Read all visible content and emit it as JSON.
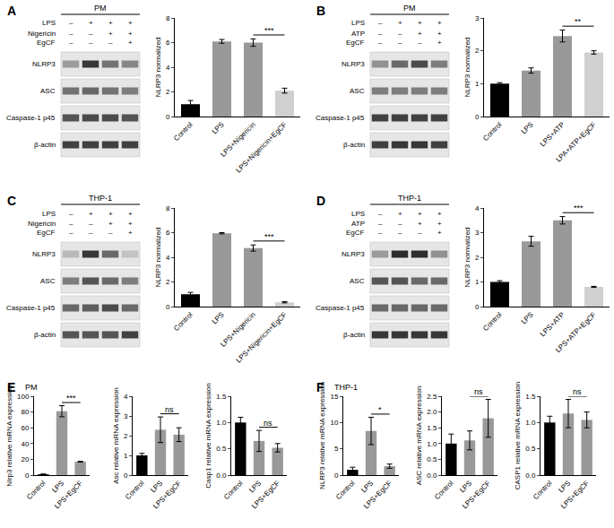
{
  "panels": [
    {
      "label": "A"
    },
    {
      "label": "B"
    },
    {
      "label": "C"
    },
    {
      "label": "D"
    },
    {
      "label": "E",
      "title": "PM"
    },
    {
      "label": "F",
      "title": "THP-1"
    }
  ],
  "blots": [
    {
      "panel": "A",
      "title": "PM",
      "conditions": [
        {
          "name": "LPS",
          "signs": [
            "–",
            "+",
            "+",
            "+"
          ]
        },
        {
          "name": "Nigericin",
          "signs": [
            "–",
            "–",
            "+",
            "+"
          ]
        },
        {
          "name": "EgCF",
          "signs": [
            "–",
            "–",
            "–",
            "+"
          ]
        }
      ],
      "bands": [
        {
          "name": "NLRP3",
          "intensity": [
            0.35,
            0.85,
            0.55,
            0.45
          ]
        },
        {
          "name": "ASC",
          "intensity": [
            0.55,
            0.6,
            0.55,
            0.5
          ]
        },
        {
          "name": "Caspase-1 p45",
          "intensity": [
            0.7,
            0.75,
            0.75,
            0.7
          ]
        },
        {
          "name": "β-actin",
          "intensity": [
            0.8,
            0.8,
            0.8,
            0.8
          ]
        }
      ]
    },
    {
      "panel": "B",
      "title": "PM",
      "conditions": [
        {
          "name": "LPS",
          "signs": [
            "–",
            "+",
            "+",
            "+"
          ]
        },
        {
          "name": "ATP",
          "signs": [
            "–",
            "–",
            "+",
            "+"
          ]
        },
        {
          "name": "EgCF",
          "signs": [
            "–",
            "–",
            "–",
            "+"
          ]
        }
      ],
      "bands": [
        {
          "name": "NLRP3",
          "intensity": [
            0.4,
            0.6,
            0.75,
            0.5
          ]
        },
        {
          "name": "ASC",
          "intensity": [
            0.5,
            0.5,
            0.5,
            0.5
          ]
        },
        {
          "name": "Caspase-1 p45",
          "intensity": [
            0.8,
            0.8,
            0.8,
            0.8
          ]
        },
        {
          "name": "β-actin",
          "intensity": [
            0.8,
            0.85,
            0.85,
            0.8
          ]
        }
      ]
    },
    {
      "panel": "C",
      "title": "THP-1",
      "conditions": [
        {
          "name": "LPS",
          "signs": [
            "–",
            "+",
            "+",
            "+"
          ]
        },
        {
          "name": "Nigericin",
          "signs": [
            "–",
            "–",
            "+",
            "+"
          ]
        },
        {
          "name": "EgCF",
          "signs": [
            "–",
            "–",
            "–",
            "+"
          ]
        }
      ],
      "bands": [
        {
          "name": "NLRP3",
          "intensity": [
            0.2,
            0.85,
            0.6,
            0.15
          ]
        },
        {
          "name": "ASC",
          "intensity": [
            0.5,
            0.7,
            0.6,
            0.5
          ]
        },
        {
          "name": "Caspase-1 p45",
          "intensity": [
            0.6,
            0.65,
            0.75,
            0.6
          ]
        },
        {
          "name": "β-actin",
          "intensity": [
            0.7,
            0.7,
            0.7,
            0.8
          ]
        }
      ]
    },
    {
      "panel": "D",
      "title": "THP-1",
      "conditions": [
        {
          "name": "LPS",
          "signs": [
            "–",
            "+",
            "+",
            "+"
          ]
        },
        {
          "name": "ATP",
          "signs": [
            "–",
            "–",
            "+",
            "+"
          ]
        },
        {
          "name": "EgCF",
          "signs": [
            "–",
            "–",
            "–",
            "+"
          ]
        }
      ],
      "bands": [
        {
          "name": "NLRP3",
          "intensity": [
            0.35,
            0.9,
            0.9,
            0.4
          ]
        },
        {
          "name": "ASC",
          "intensity": [
            0.7,
            0.7,
            0.6,
            0.6
          ]
        },
        {
          "name": "Caspase-1 p45",
          "intensity": [
            0.6,
            0.6,
            0.6,
            0.6
          ]
        },
        {
          "name": "β-actin",
          "intensity": [
            0.85,
            0.85,
            0.85,
            0.85
          ]
        }
      ]
    }
  ],
  "chart_data": [
    {
      "panel": "A",
      "type": "bar",
      "y_title": "NLRP3 normalized",
      "categories": [
        "Control",
        "LPS",
        "LPS+Nigericin",
        "LPS+Nigericin+EgCF"
      ],
      "values": [
        1.0,
        6.1,
        6.0,
        2.1
      ],
      "errors": [
        0.3,
        0.15,
        0.3,
        0.2
      ],
      "colors": [
        "#000000",
        "#999999",
        "#999999",
        "#d0d0d0"
      ],
      "ylim": [
        0,
        8
      ],
      "yticks": [
        0,
        2,
        4,
        6,
        8
      ],
      "comparison": {
        "between": [
          "LPS+Nigericin",
          "LPS+Nigericin+EgCF"
        ],
        "label": "***"
      }
    },
    {
      "panel": "B",
      "type": "bar",
      "y_title": "NLRP3 normalized",
      "categories": [
        "Control",
        "LPS",
        "LPS+ATP",
        "LPA+ATP+EgCF"
      ],
      "values": [
        1.0,
        1.4,
        2.45,
        1.95
      ],
      "errors": [
        0.03,
        0.08,
        0.18,
        0.05
      ],
      "colors": [
        "#000000",
        "#999999",
        "#999999",
        "#d0d0d0"
      ],
      "ylim": [
        0,
        3
      ],
      "yticks": [
        0,
        1,
        2,
        3
      ],
      "comparison": {
        "between": [
          "LPS+ATP",
          "LPA+ATP+EgCF"
        ],
        "label": "**"
      }
    },
    {
      "panel": "C",
      "type": "bar",
      "y_title": "NLRP3 normalized",
      "categories": [
        "Control",
        "LPS",
        "LPS+Nigericin",
        "LPS+Nigericin+EgCF"
      ],
      "values": [
        1.0,
        5.95,
        4.75,
        0.35
      ],
      "errors": [
        0.15,
        0.05,
        0.25,
        0.05
      ],
      "colors": [
        "#000000",
        "#999999",
        "#999999",
        "#d0d0d0"
      ],
      "ylim": [
        0,
        8
      ],
      "yticks": [
        0,
        2,
        4,
        6,
        8
      ],
      "comparison": {
        "between": [
          "LPS+Nigericin",
          "LPS+Nigericin+EgCF"
        ],
        "label": "***"
      }
    },
    {
      "panel": "D",
      "type": "bar",
      "y_title": "NLRP3 normalized",
      "categories": [
        "Control",
        "LPS",
        "LPS+ATP",
        "LPS+ATP+EgCF"
      ],
      "values": [
        1.0,
        2.65,
        3.5,
        0.8
      ],
      "errors": [
        0.05,
        0.2,
        0.15,
        0.02
      ],
      "colors": [
        "#000000",
        "#999999",
        "#999999",
        "#d0d0d0"
      ],
      "ylim": [
        0,
        4
      ],
      "yticks": [
        0,
        1,
        2,
        3,
        4
      ],
      "comparison": {
        "between": [
          "LPS+ATP",
          "LPS+ATP+EgCF"
        ],
        "label": "***"
      }
    },
    {
      "panel": "E",
      "type": "bar",
      "y_title": "Nlrp3 relative mRNA expression",
      "categories": [
        "Control",
        "LPS",
        "LPS+EgCF"
      ],
      "values": [
        1.0,
        81,
        17
      ],
      "errors": [
        0.5,
        7,
        0.5
      ],
      "colors": [
        "#000000",
        "#999999",
        "#999999"
      ],
      "ylim": [
        0,
        100
      ],
      "yticks": [
        0,
        20,
        40,
        60,
        80,
        100
      ],
      "comparison": {
        "between": [
          "LPS",
          "LPS+EgCF"
        ],
        "label": "***"
      }
    },
    {
      "panel": "E",
      "type": "bar",
      "y_title": "Asc relative mRNA expression",
      "categories": [
        "Control",
        "LPS",
        "LPS+EgCF"
      ],
      "values": [
        1.0,
        2.3,
        2.05
      ],
      "errors": [
        0.1,
        0.65,
        0.35
      ],
      "colors": [
        "#000000",
        "#999999",
        "#999999"
      ],
      "ylim": [
        0,
        4
      ],
      "yticks": [
        0,
        1,
        2,
        3,
        4
      ],
      "comparison": {
        "between": [
          "LPS",
          "LPS+EgCF"
        ],
        "label": "ns"
      }
    },
    {
      "panel": "E",
      "type": "bar",
      "y_title": "Casp1 relative mRNA expression",
      "categories": [
        "Control",
        "LPS",
        "LPS+EgCF"
      ],
      "values": [
        1.0,
        0.65,
        0.52
      ],
      "errors": [
        0.1,
        0.2,
        0.08
      ],
      "colors": [
        "#000000",
        "#999999",
        "#999999"
      ],
      "ylim": [
        0,
        1.5
      ],
      "yticks": [
        {
          "value": 0,
          "label": "0.0"
        },
        {
          "value": 0.5,
          "label": "0.5"
        },
        {
          "value": 1,
          "label": "1.0"
        },
        {
          "value": 1.5,
          "label": "1.5"
        }
      ],
      "comparison": {
        "between": [
          "LPS",
          "LPS+EgCF"
        ],
        "label": "ns"
      }
    },
    {
      "panel": "F",
      "type": "bar",
      "y_title": "NLRP3 relative mRNA expression",
      "categories": [
        "Control",
        "LPS",
        "LPS+EgCF"
      ],
      "values": [
        1.0,
        8.4,
        1.7
      ],
      "errors": [
        0.5,
        2.6,
        0.4
      ],
      "colors": [
        "#000000",
        "#999999",
        "#999999"
      ],
      "ylim": [
        0,
        15
      ],
      "yticks": [
        0,
        5,
        10,
        15
      ],
      "comparison": {
        "between": [
          "LPS",
          "LPS+EgCF"
        ],
        "label": "*"
      }
    },
    {
      "panel": "F",
      "type": "bar",
      "y_title": "ASC relative mRNA expression",
      "categories": [
        "Control",
        "LPS",
        "LPS+EgCF"
      ],
      "values": [
        1.0,
        1.1,
        1.8
      ],
      "errors": [
        0.3,
        0.3,
        0.6
      ],
      "colors": [
        "#000000",
        "#999999",
        "#999999"
      ],
      "ylim": [
        0,
        2.5
      ],
      "yticks": [
        {
          "value": 0,
          "label": "0.0"
        },
        {
          "value": 0.5,
          "label": "0.5"
        },
        {
          "value": 1,
          "label": "1.0"
        },
        {
          "value": 1.5,
          "label": "1.5"
        },
        {
          "value": 2,
          "label": "2.0"
        },
        {
          "value": 2.5,
          "label": "2.5"
        }
      ],
      "comparison": {
        "between": [
          "LPS",
          "LPS+EgCF"
        ],
        "label": "ns"
      }
    },
    {
      "panel": "F",
      "type": "bar",
      "y_title": "CASP1 relative mRNA expression",
      "categories": [
        "Control",
        "LPS",
        "LPS+EgCF"
      ],
      "values": [
        1.0,
        1.17,
        1.05
      ],
      "errors": [
        0.12,
        0.27,
        0.15
      ],
      "colors": [
        "#000000",
        "#999999",
        "#999999"
      ],
      "ylim": [
        0,
        1.5
      ],
      "yticks": [
        {
          "value": 0,
          "label": "0.0"
        },
        {
          "value": 0.5,
          "label": "0.5"
        },
        {
          "value": 1,
          "label": "1.0"
        },
        {
          "value": 1.5,
          "label": "1.5"
        }
      ],
      "comparison": {
        "between": [
          "LPS",
          "LPS+EgCF"
        ],
        "label": "ns"
      }
    }
  ]
}
